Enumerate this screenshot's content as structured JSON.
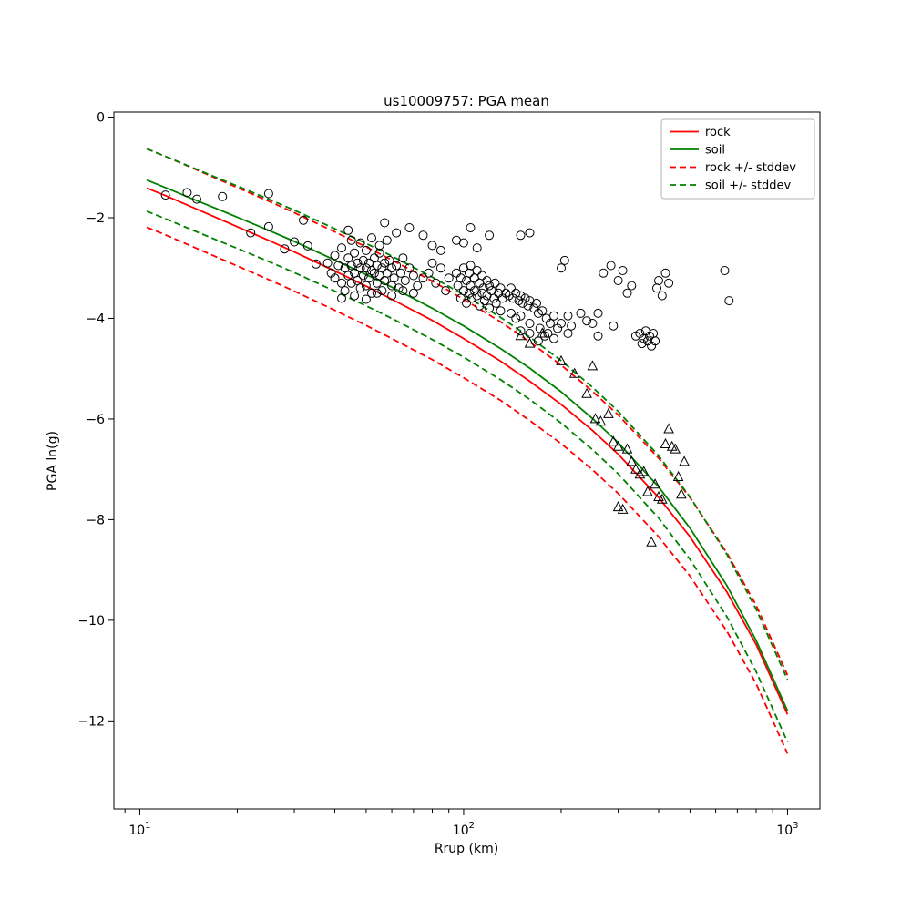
{
  "chart_data": {
    "type": "line",
    "title": "us10009757: PGA mean",
    "xlabel": "Rrup (km)",
    "ylabel": "PGA ln(g)",
    "x_scale": "log",
    "axes": {
      "xlog_lim": [
        0.92,
        3.1
      ],
      "ylim": [
        0.1,
        -13.75
      ],
      "yticks": [
        0,
        -2,
        -4,
        -6,
        -8,
        -10,
        -12
      ],
      "xticks_log": [
        1,
        2,
        3
      ],
      "grid": false
    },
    "colors": {
      "rock": "#ff0000",
      "soil": "#008000",
      "marker_edge": "#000000"
    },
    "legend": [
      {
        "label": "rock",
        "color": "#ff0000",
        "dash": false
      },
      {
        "label": "soil",
        "color": "#008000",
        "dash": false
      },
      {
        "label": "rock +/- stddev",
        "color": "#ff0000",
        "dash": true
      },
      {
        "label": "soil +/- stddev",
        "color": "#008000",
        "dash": true
      }
    ],
    "curves": {
      "r_km": [
        10.5,
        12,
        15,
        20,
        25,
        30,
        40,
        50,
        60,
        80,
        100,
        130,
        160,
        200,
        250,
        300,
        400,
        500,
        650,
        800,
        1000
      ],
      "rock_mean": [
        -1.41,
        -1.56,
        -1.83,
        -2.18,
        -2.45,
        -2.68,
        -3.06,
        -3.36,
        -3.62,
        -4.04,
        -4.4,
        -4.85,
        -5.25,
        -5.71,
        -6.23,
        -6.7,
        -7.56,
        -8.34,
        -9.44,
        -10.48,
        -11.87
      ],
      "soil_mean": [
        -1.25,
        -1.4,
        -1.66,
        -1.99,
        -2.25,
        -2.47,
        -2.84,
        -3.13,
        -3.38,
        -3.8,
        -4.15,
        -4.6,
        -4.99,
        -5.46,
        -5.99,
        -6.47,
        -7.35,
        -8.17,
        -9.31,
        -10.4,
        -11.8
      ],
      "rock_stddev": 0.78,
      "soil_stddev": 0.62
    },
    "scatter": {
      "circle_marker": "unfilled black circle",
      "triangle_marker": "unfilled black triangle-up",
      "circles": [
        [
          12,
          -1.55
        ],
        [
          14,
          -1.5
        ],
        [
          15,
          -1.63
        ],
        [
          18,
          -1.58
        ],
        [
          22,
          -2.3
        ],
        [
          25,
          -1.52
        ],
        [
          25,
          -2.18
        ],
        [
          28,
          -2.62
        ],
        [
          30,
          -2.48
        ],
        [
          32,
          -2.05
        ],
        [
          33,
          -2.56
        ],
        [
          35,
          -2.92
        ],
        [
          38,
          -2.9
        ],
        [
          39,
          -3.1
        ],
        [
          40,
          -2.75
        ],
        [
          40,
          -3.2
        ],
        [
          41,
          -2.95
        ],
        [
          42,
          -2.6
        ],
        [
          42,
          -3.3
        ],
        [
          43,
          -3.0
        ],
        [
          43,
          -3.45
        ],
        [
          44,
          -2.8
        ],
        [
          44,
          -3.15
        ],
        [
          45,
          -2.95
        ],
        [
          45,
          -3.3
        ],
        [
          46,
          -2.7
        ],
        [
          46,
          -3.1
        ],
        [
          47,
          -2.9
        ],
        [
          47,
          -3.25
        ],
        [
          48,
          -3.0
        ],
        [
          48,
          -3.4
        ],
        [
          49,
          -2.85
        ],
        [
          49,
          -3.15
        ],
        [
          50,
          -2.65
        ],
        [
          50,
          -3.0
        ],
        [
          50,
          -3.35
        ],
        [
          51,
          -2.9
        ],
        [
          51,
          -3.2
        ],
        [
          52,
          -3.05
        ],
        [
          52,
          -3.5
        ],
        [
          53,
          -2.8
        ],
        [
          53,
          -3.1
        ],
        [
          54,
          -2.95
        ],
        [
          54,
          -3.3
        ],
        [
          55,
          -2.7
        ],
        [
          55,
          -3.15
        ],
        [
          56,
          -3.0
        ],
        [
          56,
          -3.45
        ],
        [
          57,
          -2.9
        ],
        [
          57,
          -3.25
        ],
        [
          58,
          -3.1
        ],
        [
          59,
          -2.85
        ],
        [
          60,
          -3.0
        ],
        [
          60,
          -3.35
        ],
        [
          61,
          -3.2
        ],
        [
          62,
          -2.95
        ],
        [
          63,
          -3.4
        ],
        [
          64,
          -3.1
        ],
        [
          65,
          -2.8
        ],
        [
          66,
          -3.25
        ],
        [
          68,
          -3.0
        ],
        [
          70,
          -3.15
        ],
        [
          72,
          -3.35
        ],
        [
          75,
          -3.2
        ],
        [
          45,
          -2.45
        ],
        [
          48,
          -2.5
        ],
        [
          52,
          -2.4
        ],
        [
          55,
          -2.55
        ],
        [
          58,
          -2.45
        ],
        [
          42,
          -3.6
        ],
        [
          46,
          -3.55
        ],
        [
          50,
          -3.62
        ],
        [
          54,
          -3.5
        ],
        [
          60,
          -3.55
        ],
        [
          65,
          -3.45
        ],
        [
          70,
          -3.5
        ],
        [
          44,
          -2.25
        ],
        [
          57,
          -2.1
        ],
        [
          62,
          -2.3
        ],
        [
          68,
          -2.2
        ],
        [
          75,
          -2.35
        ],
        [
          80,
          -2.55
        ],
        [
          85,
          -2.65
        ],
        [
          95,
          -2.45
        ],
        [
          100,
          -2.5
        ],
        [
          105,
          -2.2
        ],
        [
          110,
          -2.6
        ],
        [
          120,
          -2.35
        ],
        [
          150,
          -2.35
        ],
        [
          160,
          -2.3
        ],
        [
          78,
          -3.1
        ],
        [
          80,
          -2.9
        ],
        [
          82,
          -3.3
        ],
        [
          85,
          -3.0
        ],
        [
          88,
          -3.45
        ],
        [
          90,
          -3.2
        ],
        [
          95,
          -3.1
        ],
        [
          96,
          -3.35
        ],
        [
          98,
          -3.2
        ],
        [
          98,
          -3.6
        ],
        [
          100,
          -3.0
        ],
        [
          100,
          -3.45
        ],
        [
          102,
          -3.25
        ],
        [
          102,
          -3.7
        ],
        [
          104,
          -3.1
        ],
        [
          104,
          -3.5
        ],
        [
          105,
          -2.95
        ],
        [
          105,
          -3.35
        ],
        [
          106,
          -3.6
        ],
        [
          108,
          -3.2
        ],
        [
          108,
          -3.45
        ],
        [
          110,
          -3.05
        ],
        [
          110,
          -3.55
        ],
        [
          112,
          -3.3
        ],
        [
          112,
          -3.75
        ],
        [
          114,
          -3.15
        ],
        [
          114,
          -3.5
        ],
        [
          115,
          -3.4
        ],
        [
          116,
          -3.65
        ],
        [
          118,
          -3.25
        ],
        [
          118,
          -3.55
        ],
        [
          120,
          -3.35
        ],
        [
          120,
          -3.8
        ],
        [
          122,
          -3.45
        ],
        [
          124,
          -3.6
        ],
        [
          125,
          -3.3
        ],
        [
          126,
          -3.7
        ],
        [
          128,
          -3.5
        ],
        [
          130,
          -3.4
        ],
        [
          130,
          -3.85
        ],
        [
          132,
          -3.6
        ],
        [
          135,
          -3.5
        ],
        [
          138,
          -3.55
        ],
        [
          140,
          -3.4
        ],
        [
          140,
          -3.9
        ],
        [
          142,
          -3.6
        ],
        [
          145,
          -3.5
        ],
        [
          145,
          -4.0
        ],
        [
          148,
          -3.65
        ],
        [
          150,
          -3.55
        ],
        [
          150,
          -3.95
        ],
        [
          152,
          -3.7
        ],
        [
          155,
          -3.6
        ],
        [
          158,
          -3.75
        ],
        [
          160,
          -3.65
        ],
        [
          160,
          -4.1
        ],
        [
          165,
          -3.8
        ],
        [
          168,
          -3.7
        ],
        [
          170,
          -3.9
        ],
        [
          172,
          -4.2
        ],
        [
          175,
          -3.85
        ],
        [
          178,
          -4.35
        ],
        [
          180,
          -4.0
        ],
        [
          182,
          -4.3
        ],
        [
          185,
          -4.1
        ],
        [
          190,
          -3.95
        ],
        [
          190,
          -4.4
        ],
        [
          195,
          -4.2
        ],
        [
          200,
          -3.0
        ],
        [
          200,
          -4.1
        ],
        [
          205,
          -2.85
        ],
        [
          210,
          -3.95
        ],
        [
          210,
          -4.3
        ],
        [
          215,
          -4.15
        ],
        [
          150,
          -4.25
        ],
        [
          160,
          -4.3
        ],
        [
          170,
          -4.45
        ],
        [
          230,
          -3.9
        ],
        [
          240,
          -4.05
        ],
        [
          250,
          -4.1
        ],
        [
          260,
          -3.9
        ],
        [
          260,
          -4.35
        ],
        [
          270,
          -3.1
        ],
        [
          285,
          -2.95
        ],
        [
          290,
          -4.15
        ],
        [
          300,
          -3.25
        ],
        [
          310,
          -3.05
        ],
        [
          320,
          -3.5
        ],
        [
          330,
          -3.35
        ],
        [
          340,
          -4.35
        ],
        [
          350,
          -4.3
        ],
        [
          355,
          -4.5
        ],
        [
          360,
          -4.4
        ],
        [
          365,
          -4.25
        ],
        [
          370,
          -4.45
        ],
        [
          375,
          -4.35
        ],
        [
          380,
          -4.55
        ],
        [
          385,
          -4.3
        ],
        [
          390,
          -4.45
        ],
        [
          395,
          -3.4
        ],
        [
          400,
          -3.25
        ],
        [
          410,
          -3.55
        ],
        [
          420,
          -3.1
        ],
        [
          430,
          -3.3
        ],
        [
          640,
          -3.05
        ],
        [
          660,
          -3.65
        ]
      ],
      "triangles": [
        [
          150,
          -4.35
        ],
        [
          160,
          -4.5
        ],
        [
          175,
          -4.3
        ],
        [
          200,
          -4.85
        ],
        [
          220,
          -5.1
        ],
        [
          240,
          -5.5
        ],
        [
          250,
          -4.95
        ],
        [
          255,
          -6.0
        ],
        [
          265,
          -6.05
        ],
        [
          280,
          -5.9
        ],
        [
          290,
          -6.45
        ],
        [
          300,
          -6.55
        ],
        [
          300,
          -7.75
        ],
        [
          310,
          -7.8
        ],
        [
          320,
          -6.6
        ],
        [
          330,
          -6.85
        ],
        [
          340,
          -7.0
        ],
        [
          350,
          -7.1
        ],
        [
          360,
          -7.05
        ],
        [
          370,
          -7.45
        ],
        [
          380,
          -8.45
        ],
        [
          390,
          -7.3
        ],
        [
          400,
          -7.55
        ],
        [
          410,
          -7.6
        ],
        [
          420,
          -6.5
        ],
        [
          430,
          -6.2
        ],
        [
          440,
          -6.55
        ],
        [
          450,
          -6.6
        ],
        [
          460,
          -7.15
        ],
        [
          470,
          -7.5
        ],
        [
          480,
          -6.85
        ]
      ]
    }
  }
}
